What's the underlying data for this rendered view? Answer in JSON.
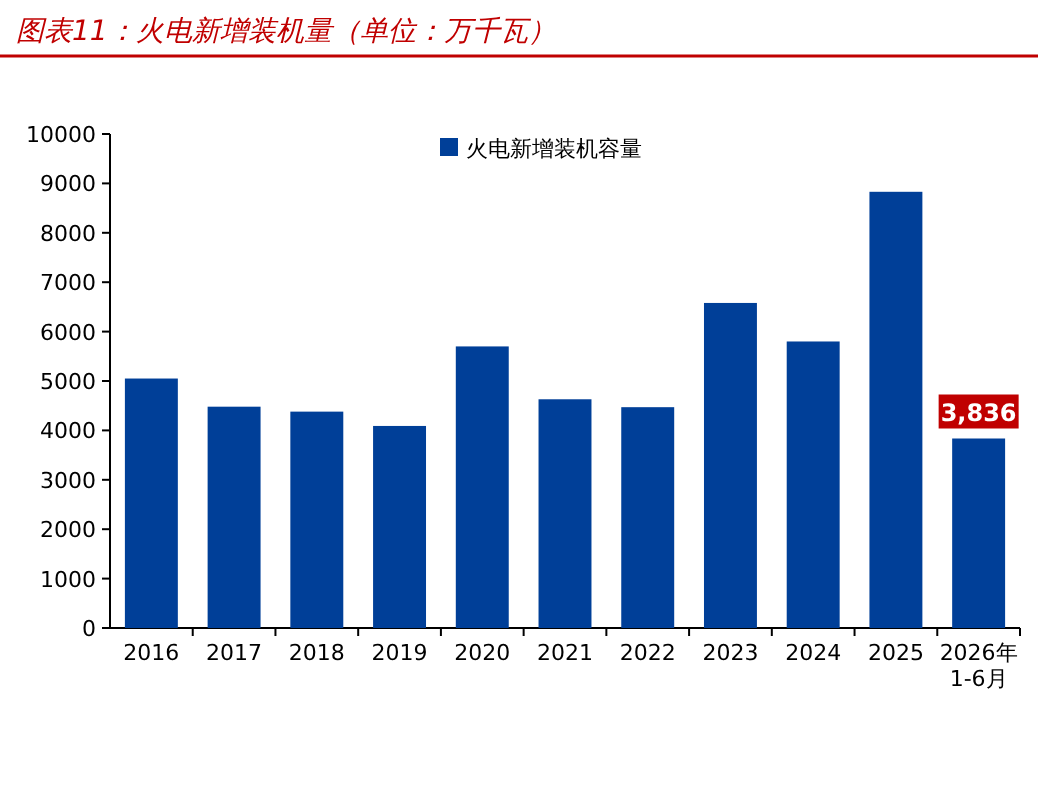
{
  "chart_data": {
    "type": "bar",
    "title": "图表11：火电新增装机量（单位：万千瓦）",
    "categories": [
      "2016",
      "2017",
      "2018",
      "2019",
      "2020",
      "2021",
      "2022",
      "2023",
      "2024",
      "2025",
      "2026年\n1-6月"
    ],
    "series": [
      {
        "name": "火电新增装机容量",
        "color": "#003f98",
        "values": [
          5050,
          4480,
          4380,
          4090,
          5700,
          4630,
          4470,
          6580,
          5800,
          8830,
          3836
        ],
        "value_labels": [
          null,
          null,
          null,
          null,
          null,
          null,
          null,
          null,
          null,
          null,
          "3,836"
        ]
      }
    ],
    "ylim": [
      0,
      10000
    ],
    "yticks": [
      0,
      1000,
      2000,
      3000,
      4000,
      5000,
      6000,
      7000,
      8000,
      9000,
      10000
    ],
    "grid": false,
    "legend": "top"
  }
}
